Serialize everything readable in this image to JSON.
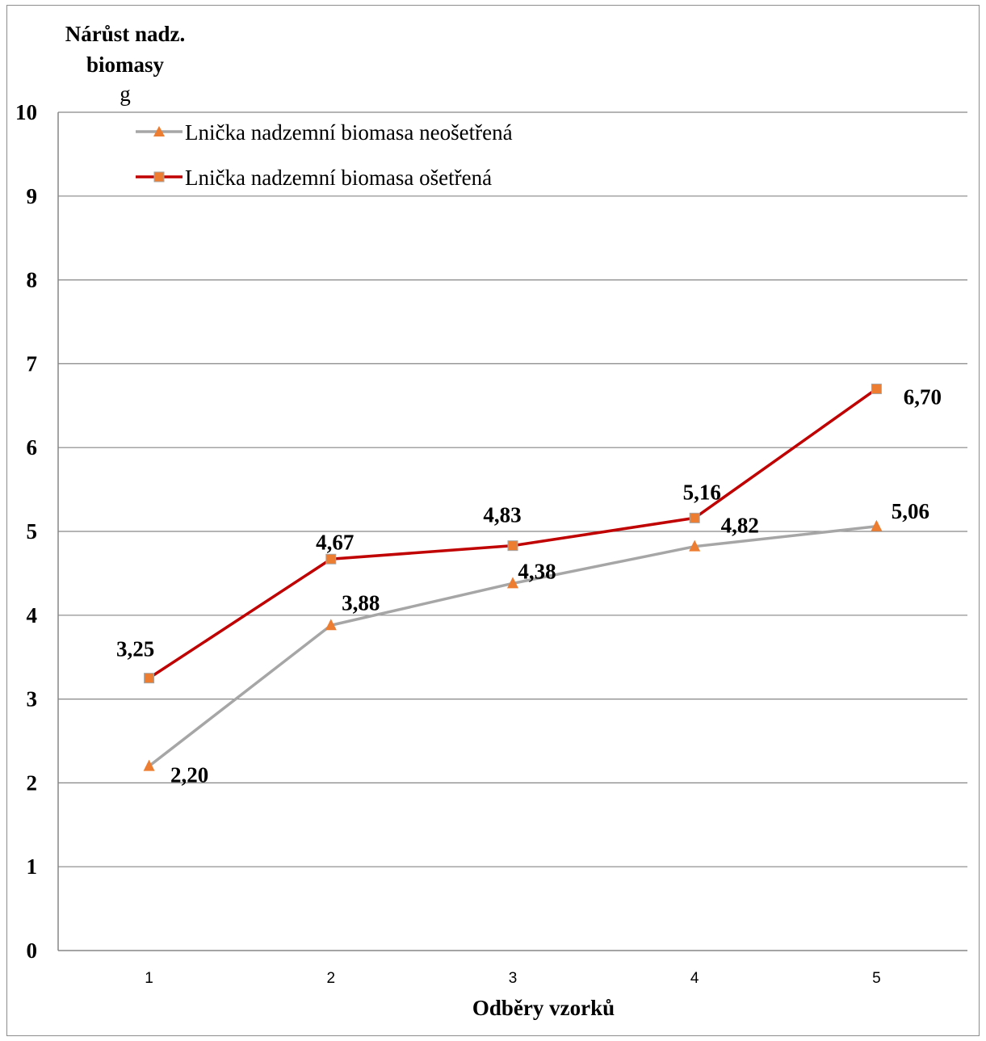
{
  "chart_data": {
    "type": "line",
    "ylabel": "Nárůst nadz. biomasy",
    "ylabel_line1": "Nárůst nadz.",
    "ylabel_line2": "biomasy",
    "yunit": "g",
    "xlabel": "Odběry vzorků",
    "categories": [
      "1",
      "2",
      "3",
      "4",
      "5"
    ],
    "ylim": [
      0,
      10
    ],
    "yticks": [
      "0",
      "1",
      "2",
      "3",
      "4",
      "5",
      "6",
      "7",
      "8",
      "9",
      "10"
    ],
    "grid": true,
    "legend_position": "top-left",
    "series": [
      {
        "name": "Lnička nadzemní biomasa neošetřená",
        "values": [
          2.2,
          3.88,
          4.38,
          4.82,
          5.06
        ],
        "labels": [
          "2,20",
          "3,88",
          "4,38",
          "4,82",
          "5,06"
        ],
        "line_color": "#a6a6a6",
        "marker": "triangle",
        "marker_color": "#ed7d31"
      },
      {
        "name": "Lnička nadzemní biomasa ošetřená",
        "values": [
          3.25,
          4.67,
          4.83,
          5.16,
          6.7
        ],
        "labels": [
          "3,25",
          "4,67",
          "4,83",
          "5,16",
          "6,70"
        ],
        "line_color": "#c00000",
        "marker": "square",
        "marker_color": "#ed7d31"
      }
    ]
  }
}
